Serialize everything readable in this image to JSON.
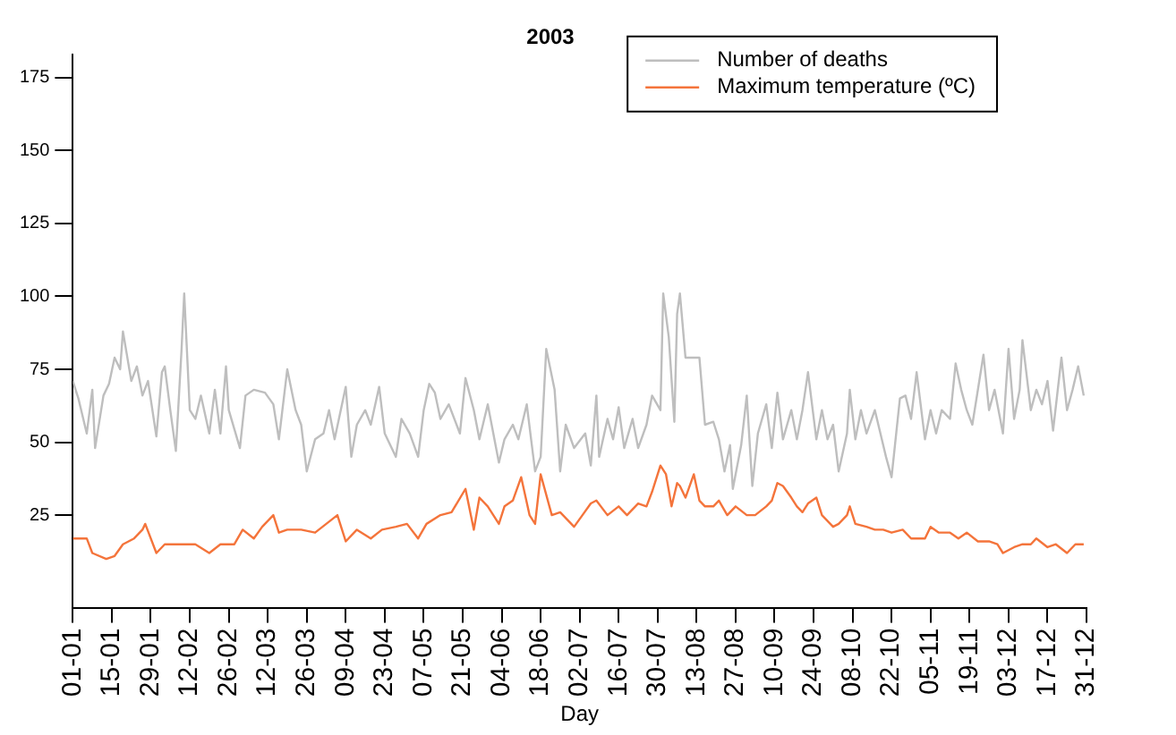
{
  "chart_data": {
    "type": "line",
    "title": "2003",
    "xlabel": "Day",
    "xlim": [
      "--01-01",
      "--12-31"
    ],
    "ylim": [
      -7,
      183
    ],
    "yticks": [
      25,
      50,
      75,
      100,
      125,
      150,
      175
    ],
    "xticks": [
      {
        "value": "--01-01",
        "label": "01-01"
      },
      {
        "value": "--01-15",
        "label": "15-01"
      },
      {
        "value": "--01-29",
        "label": "29-01"
      },
      {
        "value": "--02-12",
        "label": "12-02"
      },
      {
        "value": "--02-26",
        "label": "26-02"
      },
      {
        "value": "--03-12",
        "label": "12-03"
      },
      {
        "value": "--03-26",
        "label": "26-03"
      },
      {
        "value": "--04-09",
        "label": "09-04"
      },
      {
        "value": "--04-23",
        "label": "23-04"
      },
      {
        "value": "--05-07",
        "label": "07-05"
      },
      {
        "value": "--05-21",
        "label": "21-05"
      },
      {
        "value": "--06-04",
        "label": "04-06"
      },
      {
        "value": "--06-18",
        "label": "18-06"
      },
      {
        "value": "--07-02",
        "label": "02-07"
      },
      {
        "value": "--07-16",
        "label": "16-07"
      },
      {
        "value": "--07-30",
        "label": "30-07"
      },
      {
        "value": "--08-13",
        "label": "13-08"
      },
      {
        "value": "--08-27",
        "label": "27-08"
      },
      {
        "value": "--09-10",
        "label": "10-09"
      },
      {
        "value": "--09-24",
        "label": "24-09"
      },
      {
        "value": "--10-08",
        "label": "08-10"
      },
      {
        "value": "--10-22",
        "label": "22-10"
      },
      {
        "value": "--11-05",
        "label": "05-11"
      },
      {
        "value": "--11-19",
        "label": "19-11"
      },
      {
        "value": "--12-03",
        "label": "03-12"
      },
      {
        "value": "--12-17",
        "label": "17-12"
      },
      {
        "value": "--12-31",
        "label": "31-12"
      }
    ],
    "grid": false,
    "legend": "top right",
    "marker": "none",
    "line_style": "solid",
    "series": [
      {
        "name": "Number of deaths",
        "color": "#bebebe",
        "x": [
          "--01-01",
          "--01-03",
          "--01-06",
          "--01-08",
          "--01-09",
          "--01-12",
          "--01-14",
          "--01-16",
          "--01-18",
          "--01-19",
          "--01-22",
          "--01-24",
          "--01-26",
          "--01-28",
          "--01-31",
          "--02-02",
          "--02-03",
          "--02-05",
          "--02-07",
          "--02-09",
          "--02-10",
          "--02-12",
          "--02-14",
          "--02-16",
          "--02-19",
          "--02-21",
          "--02-23",
          "--02-25",
          "--02-26",
          "--03-02",
          "--03-04",
          "--03-07",
          "--03-11",
          "--03-14",
          "--03-16",
          "--03-19",
          "--03-22",
          "--03-24",
          "--03-26",
          "--03-29",
          "--04-01",
          "--04-03",
          "--04-05",
          "--04-09",
          "--04-11",
          "--04-13",
          "--04-16",
          "--04-18",
          "--04-21",
          "--04-23",
          "--04-27",
          "--04-29",
          "--05-02",
          "--05-05",
          "--05-07",
          "--05-09",
          "--05-11",
          "--05-13",
          "--05-16",
          "--05-20",
          "--05-22",
          "--05-25",
          "--05-27",
          "--05-30",
          "--06-03",
          "--06-05",
          "--06-08",
          "--06-10",
          "--06-13",
          "--06-16",
          "--06-18",
          "--06-20",
          "--06-23",
          "--06-25",
          "--06-27",
          "--06-30",
          "--07-04",
          "--07-06",
          "--07-08",
          "--07-09",
          "--07-12",
          "--07-14",
          "--07-16",
          "--07-18",
          "--07-21",
          "--07-23",
          "--07-26",
          "--07-28",
          "--07-31",
          "--08-01",
          "--08-03",
          "--08-05",
          "--08-06",
          "--08-07",
          "--08-09",
          "--08-12",
          "--08-14",
          "--08-16",
          "--08-19",
          "--08-21",
          "--08-23",
          "--08-25",
          "--08-26",
          "--08-29",
          "--08-31",
          "--09-02",
          "--09-04",
          "--09-07",
          "--09-09",
          "--09-11",
          "--09-13",
          "--09-16",
          "--09-18",
          "--09-20",
          "--09-22",
          "--09-25",
          "--09-27",
          "--09-29",
          "--10-01",
          "--10-03",
          "--10-06",
          "--10-07",
          "--10-09",
          "--10-11",
          "--10-13",
          "--10-16",
          "--10-18",
          "--10-20",
          "--10-22",
          "--10-25",
          "--10-27",
          "--10-29",
          "--10-31",
          "--11-03",
          "--11-05",
          "--11-07",
          "--11-09",
          "--11-12",
          "--11-14",
          "--11-16",
          "--11-18",
          "--11-20",
          "--11-24",
          "--11-26",
          "--11-28",
          "--12-01",
          "--12-03",
          "--12-05",
          "--12-07",
          "--12-08",
          "--12-11",
          "--12-13",
          "--12-15",
          "--12-17",
          "--12-19",
          "--12-22",
          "--12-24",
          "--12-26",
          "--12-28",
          "--12-30"
        ],
        "values": [
          71,
          65,
          53,
          68,
          48,
          66,
          70,
          79,
          75,
          88,
          71,
          76,
          66,
          71,
          52,
          74,
          76,
          61,
          47,
          81,
          101,
          61,
          58,
          66,
          53,
          68,
          53,
          76,
          61,
          48,
          66,
          68,
          67,
          63,
          51,
          75,
          61,
          56,
          40,
          51,
          53,
          61,
          51,
          69,
          45,
          56,
          61,
          56,
          69,
          53,
          45,
          58,
          53,
          45,
          61,
          70,
          67,
          58,
          63,
          53,
          72,
          61,
          51,
          63,
          43,
          51,
          56,
          51,
          63,
          40,
          45,
          82,
          68,
          40,
          56,
          48,
          53,
          42,
          66,
          45,
          58,
          51,
          62,
          48,
          58,
          48,
          56,
          66,
          61,
          101,
          86,
          57,
          94,
          101,
          79,
          79,
          79,
          56,
          57,
          51,
          40,
          49,
          34,
          49,
          66,
          35,
          53,
          63,
          48,
          67,
          51,
          61,
          51,
          61,
          74,
          51,
          61,
          51,
          56,
          40,
          53,
          68,
          51,
          61,
          53,
          61,
          53,
          45,
          38,
          65,
          66,
          58,
          74,
          51,
          61,
          53,
          61,
          58,
          77,
          68,
          61,
          56,
          80,
          61,
          68,
          53,
          82,
          58,
          68,
          85,
          61,
          68,
          63,
          71,
          54,
          79,
          61,
          68,
          76,
          66
        ]
      },
      {
        "name": "Maximum temperature (ºC)",
        "color": "#f4743b",
        "x": [
          "--01-01",
          "--01-04",
          "--01-06",
          "--01-08",
          "--01-13",
          "--01-16",
          "--01-19",
          "--01-23",
          "--01-26",
          "--01-27",
          "--01-31",
          "--02-03",
          "--02-07",
          "--02-14",
          "--02-19",
          "--02-23",
          "--02-28",
          "--03-03",
          "--03-07",
          "--03-10",
          "--03-14",
          "--03-16",
          "--03-19",
          "--03-24",
          "--03-29",
          "--04-02",
          "--04-06",
          "--04-09",
          "--04-13",
          "--04-18",
          "--04-22",
          "--04-27",
          "--05-01",
          "--05-05",
          "--05-08",
          "--05-13",
          "--05-17",
          "--05-22",
          "--05-25",
          "--05-27",
          "--05-30",
          "--06-03",
          "--06-05",
          "--06-08",
          "--06-11",
          "--06-14",
          "--06-16",
          "--06-18",
          "--06-22",
          "--06-25",
          "--06-30",
          "--07-03",
          "--07-06",
          "--07-08",
          "--07-12",
          "--07-16",
          "--07-19",
          "--07-23",
          "--07-26",
          "--07-28",
          "--07-31",
          "--08-02",
          "--08-04",
          "--08-06",
          "--08-07",
          "--08-09",
          "--08-12",
          "--08-14",
          "--08-16",
          "--08-19",
          "--08-21",
          "--08-24",
          "--08-27",
          "--08-31",
          "--09-03",
          "--09-07",
          "--09-09",
          "--09-11",
          "--09-13",
          "--09-16",
          "--09-18",
          "--09-20",
          "--09-22",
          "--09-25",
          "--09-27",
          "--10-01",
          "--10-03",
          "--10-06",
          "--10-07",
          "--10-09",
          "--10-13",
          "--10-16",
          "--10-19",
          "--10-22",
          "--10-26",
          "--10-29",
          "--11-03",
          "--11-05",
          "--11-08",
          "--11-12",
          "--11-15",
          "--11-18",
          "--11-22",
          "--11-26",
          "--11-29",
          "--12-01",
          "--12-05",
          "--12-08",
          "--12-11",
          "--12-13",
          "--12-17",
          "--12-20",
          "--12-24",
          "--12-27",
          "--12-30"
        ],
        "values": [
          17,
          17,
          17,
          12,
          10,
          11,
          15,
          17,
          20,
          22,
          12,
          15,
          15,
          15,
          12,
          15,
          15,
          20,
          17,
          21,
          25,
          19,
          20,
          20,
          19,
          22,
          25,
          16,
          20,
          17,
          20,
          21,
          22,
          17,
          22,
          25,
          26,
          34,
          20,
          31,
          28,
          22,
          28,
          30,
          38,
          25,
          22,
          39,
          25,
          26,
          21,
          25,
          29,
          30,
          25,
          28,
          25,
          29,
          28,
          33,
          42,
          39,
          28,
          36,
          35,
          31,
          39,
          30,
          28,
          28,
          30,
          25,
          28,
          25,
          25,
          28,
          30,
          36,
          35,
          31,
          28,
          26,
          29,
          31,
          25,
          21,
          22,
          25,
          28,
          22,
          21,
          20,
          20,
          19,
          20,
          17,
          17,
          21,
          19,
          19,
          17,
          19,
          16,
          16,
          15,
          12,
          14,
          15,
          15,
          17,
          14,
          15,
          12,
          15,
          15
        ]
      }
    ]
  }
}
